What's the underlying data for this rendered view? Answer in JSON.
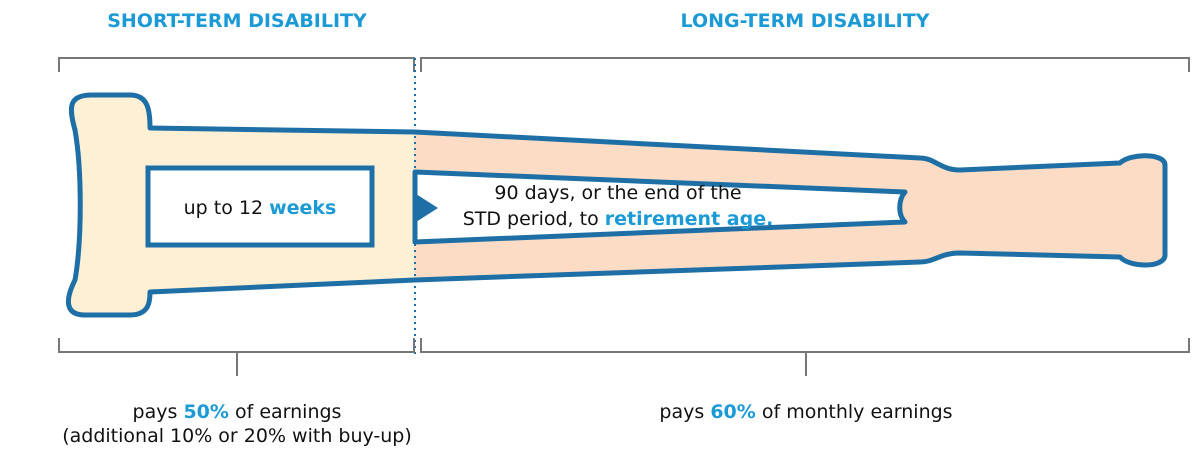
{
  "sections": [
    {
      "heading": "SHORT-TERM DISABILITY",
      "duration": [
        "up to 12",
        "weeks"
      ],
      "payment": [
        "pays",
        "50%",
        "of earnings"
      ],
      "note": "(additional 10% or 20% with buy-up)"
    },
    {
      "heading": "LONG-TERM DISABILITY",
      "duration": [
        "90 days, or the end of the",
        "STD period, to",
        "retirement age."
      ],
      "payment": [
        "pays",
        "60%",
        "of monthly earnings"
      ]
    }
  ]
}
